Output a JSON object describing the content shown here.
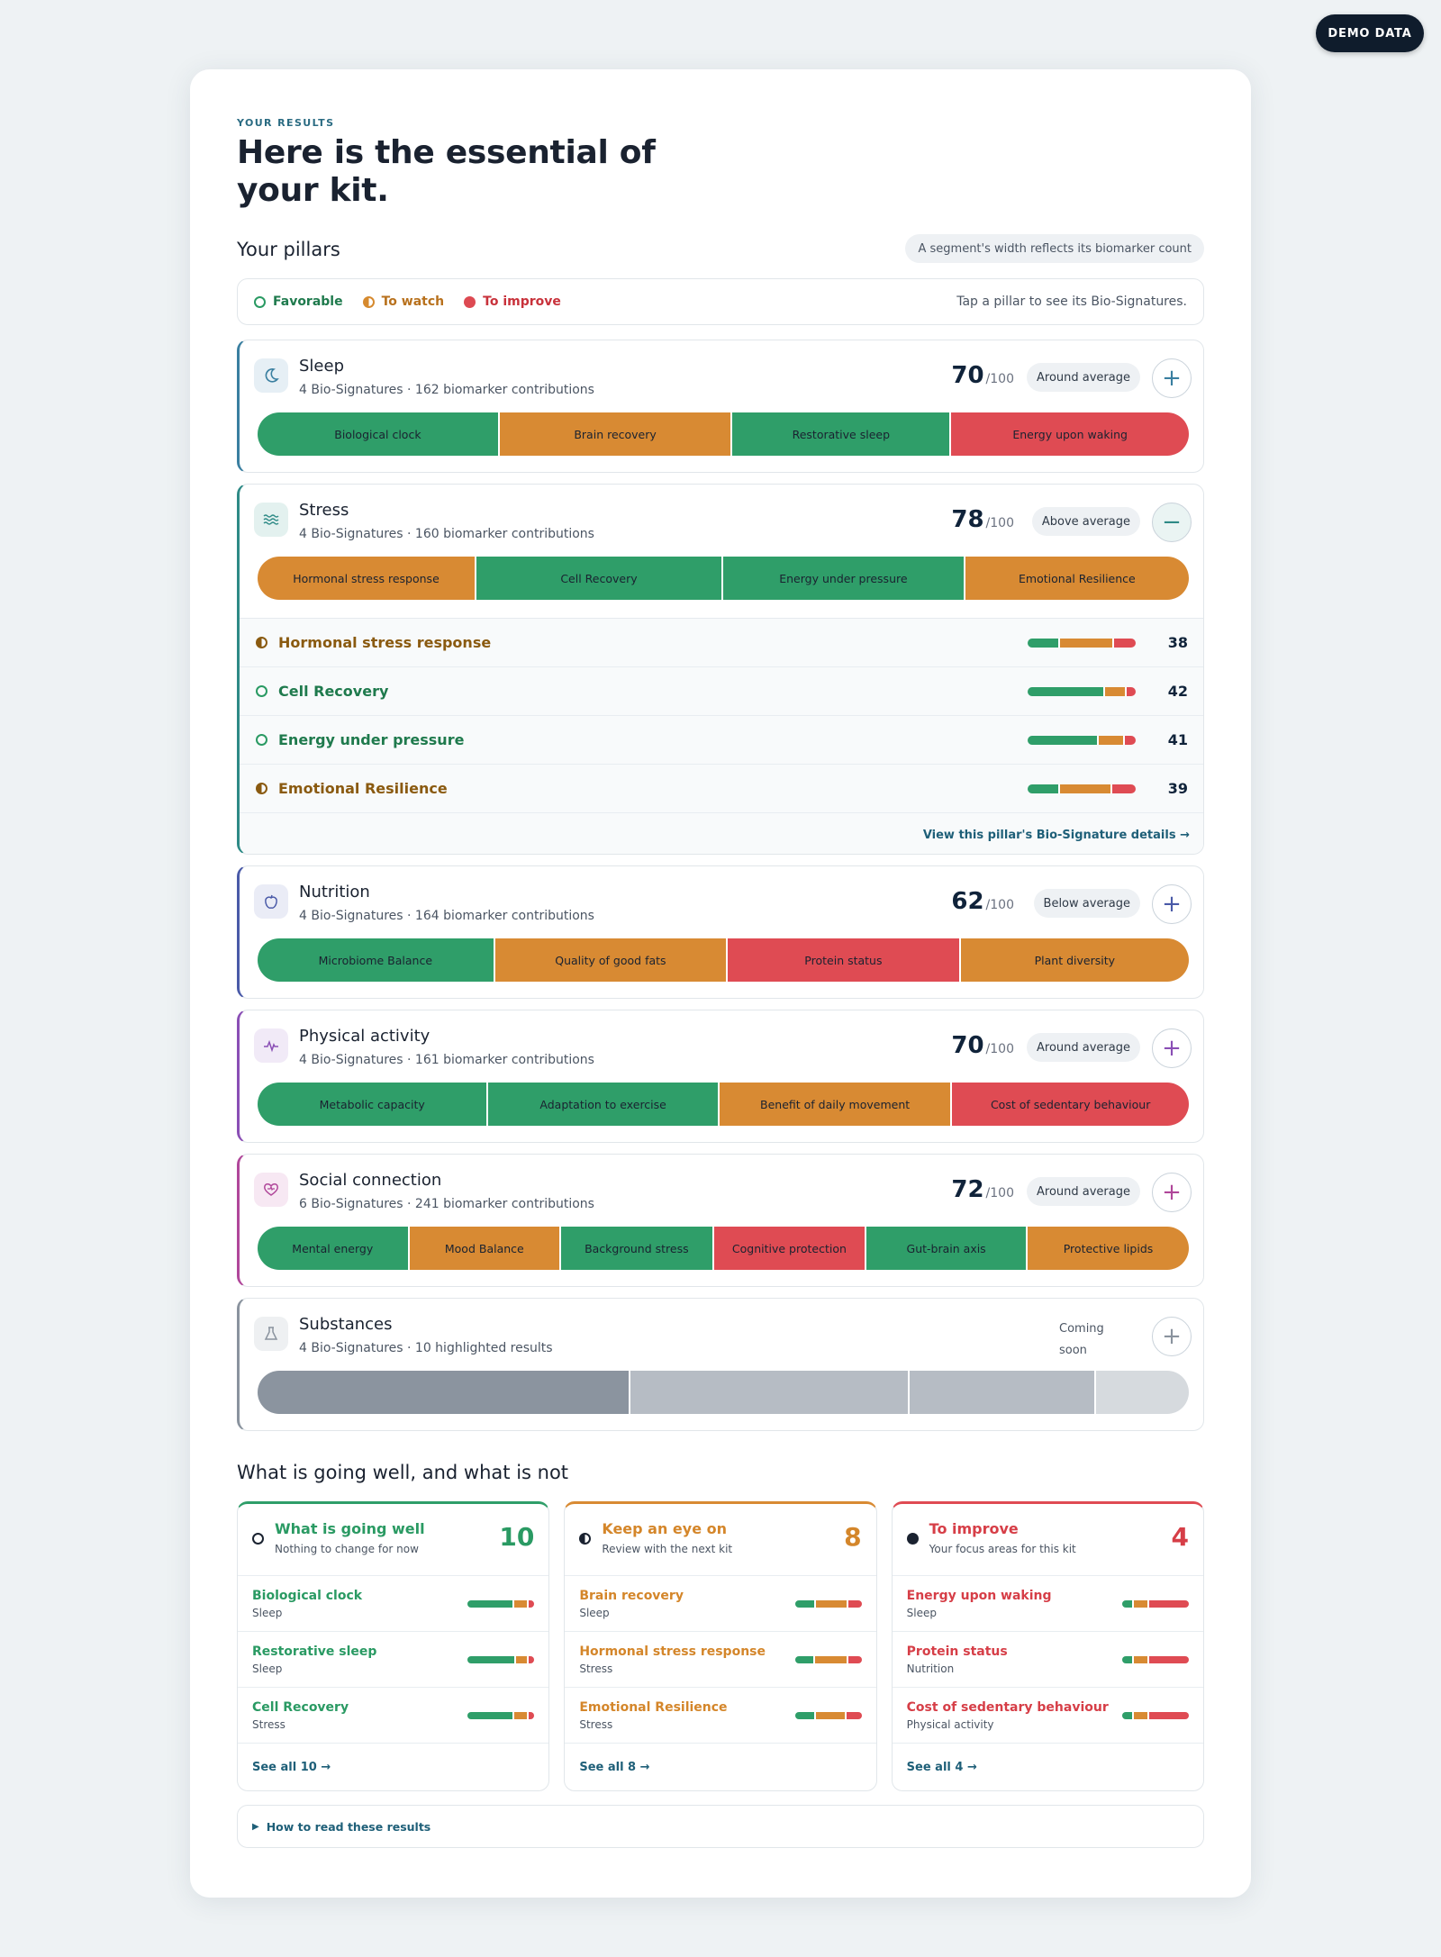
{
  "demo_badge": "DEMO DATA",
  "header": {
    "kicker": "YOUR RESULTS",
    "title": "Here is the essential of your kit."
  },
  "pillars_section": {
    "title": "Your pillars",
    "note": "A segment's width reflects its biomarker count"
  },
  "legend": {
    "favorable": "Favorable",
    "watch": "To watch",
    "improve": "To improve",
    "hint": "Tap a pillar to see its Bio-Signatures."
  },
  "colors": {
    "favorable": "#2f9e69",
    "watch": "#d88a33",
    "improve": "#df4b53",
    "accent": "#1e5f78"
  },
  "pillars": [
    {
      "name": "Sleep",
      "sub": "4 Bio-Signatures · 162 biomarker contributions",
      "score": "70",
      "of": "/100",
      "badge": "Around average",
      "toggle": "+",
      "icon": "moon-icon",
      "segments": [
        {
          "label": "Biological clock",
          "status": "favorable"
        },
        {
          "label": "Brain recovery",
          "status": "watch"
        },
        {
          "label": "Restorative sleep",
          "status": "favorable"
        },
        {
          "label": "Energy upon waking",
          "status": "improve"
        }
      ]
    },
    {
      "name": "Stress",
      "sub": "4 Bio-Signatures · 160 biomarker contributions",
      "score": "78",
      "of": "/100",
      "badge": "Above average",
      "toggle": "−",
      "icon": "waves-icon",
      "segments": [
        {
          "label": "Hormonal stress response",
          "status": "watch"
        },
        {
          "label": "Cell Recovery",
          "status": "favorable"
        },
        {
          "label": "Energy under pressure",
          "status": "favorable"
        },
        {
          "label": "Emotional Resilience",
          "status": "watch"
        }
      ],
      "details": [
        {
          "label": "Hormonal stress response",
          "status": "watch",
          "value": "38"
        },
        {
          "label": "Cell Recovery",
          "status": "favorable",
          "value": "42"
        },
        {
          "label": "Energy under pressure",
          "status": "favorable",
          "value": "41"
        },
        {
          "label": "Emotional Resilience",
          "status": "watch",
          "value": "39"
        }
      ],
      "details_link": "View this pillar's Bio-Signature details →"
    },
    {
      "name": "Nutrition",
      "sub": "4 Bio-Signatures · 164 biomarker contributions",
      "score": "62",
      "of": "/100",
      "badge": "Below average",
      "toggle": "+",
      "icon": "apple-icon",
      "segments": [
        {
          "label": "Microbiome Balance",
          "status": "favorable"
        },
        {
          "label": "Quality of good fats",
          "status": "watch"
        },
        {
          "label": "Protein status",
          "status": "improve"
        },
        {
          "label": "Plant diversity",
          "status": "watch"
        }
      ]
    },
    {
      "name": "Physical activity",
      "sub": "4 Bio-Signatures · 161 biomarker contributions",
      "score": "70",
      "of": "/100",
      "badge": "Around average",
      "toggle": "+",
      "icon": "pulse-icon",
      "segments": [
        {
          "label": "Metabolic capacity",
          "status": "favorable"
        },
        {
          "label": "Adaptation to exercise",
          "status": "favorable"
        },
        {
          "label": "Benefit of daily movement",
          "status": "watch"
        },
        {
          "label": "Cost of sedentary behaviour",
          "status": "improve"
        }
      ]
    },
    {
      "name": "Social connection",
      "sub": "6 Bio-Signatures · 241 biomarker contributions",
      "score": "72",
      "of": "/100",
      "badge": "Around average",
      "toggle": "+",
      "icon": "heart-icon",
      "segments": [
        {
          "label": "Mental energy",
          "status": "favorable"
        },
        {
          "label": "Mood Balance",
          "status": "watch"
        },
        {
          "label": "Background stress",
          "status": "favorable"
        },
        {
          "label": "Cognitive protection",
          "status": "improve"
        },
        {
          "label": "Gut-brain axis",
          "status": "favorable"
        },
        {
          "label": "Protective lipids",
          "status": "watch"
        }
      ]
    },
    {
      "name": "Substances",
      "sub": "4 Bio-Signatures · 10 highlighted results",
      "status_text": "Coming soon",
      "toggle": "+",
      "icon": "flask-icon"
    }
  ],
  "summary": {
    "title": "What is going well, and what is not",
    "columns": [
      {
        "title": "What is going well",
        "sub": "Nothing to change for now",
        "count": "10",
        "items": [
          {
            "name": "Biological clock",
            "pillar": "Sleep"
          },
          {
            "name": "Restorative sleep",
            "pillar": "Sleep"
          },
          {
            "name": "Cell Recovery",
            "pillar": "Stress"
          }
        ],
        "see_all": "See all 10 →"
      },
      {
        "title": "Keep an eye on",
        "sub": "Review with the next kit",
        "count": "8",
        "items": [
          {
            "name": "Brain recovery",
            "pillar": "Sleep"
          },
          {
            "name": "Hormonal stress response",
            "pillar": "Stress"
          },
          {
            "name": "Emotional Resilience",
            "pillar": "Stress"
          }
        ],
        "see_all": "See all 8 →"
      },
      {
        "title": "To improve",
        "sub": "Your focus areas for this kit",
        "count": "4",
        "items": [
          {
            "name": "Energy upon waking",
            "pillar": "Sleep"
          },
          {
            "name": "Protein status",
            "pillar": "Nutrition"
          },
          {
            "name": "Cost of sedentary behaviour",
            "pillar": "Physical activity"
          }
        ],
        "see_all": "See all 4 →"
      }
    ]
  },
  "howto": "How to read these results"
}
